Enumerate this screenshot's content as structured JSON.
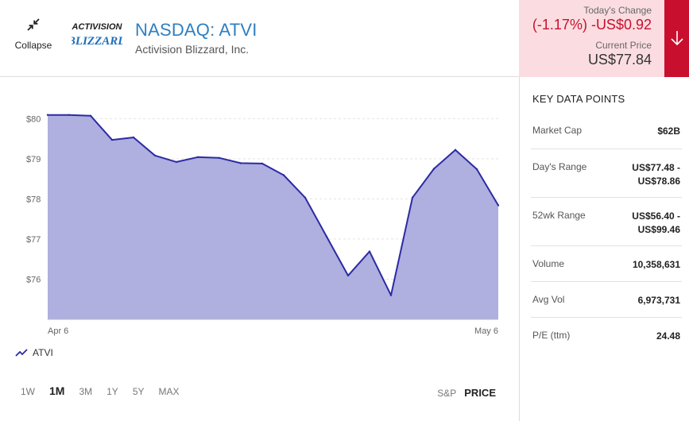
{
  "header": {
    "collapse_label": "Collapse",
    "ticker": "NASDAQ: ATVI",
    "company": "Activision Blizzard, Inc.",
    "logo_line1": "ACTIVISION",
    "logo_line2": "BLIZZARD"
  },
  "quote": {
    "change_label": "Today's Change",
    "change_value": "(-1.17%) -US$0.92",
    "price_label": "Current Price",
    "price_value": "US$77.84",
    "accent_color": "#c8102e",
    "panel_color": "#fbdde1"
  },
  "key_data": {
    "title": "KEY DATA POINTS",
    "rows": [
      {
        "label": "Market Cap",
        "value": "$62B"
      },
      {
        "label": "Day's Range",
        "value": "US$77.48 - US$78.86"
      },
      {
        "label": "52wk Range",
        "value": "US$56.40 - US$99.46"
      },
      {
        "label": "Volume",
        "value": "10,358,631"
      },
      {
        "label": "Avg Vol",
        "value": "6,973,731"
      },
      {
        "label": "P/E (ttm)",
        "value": "24.48"
      }
    ]
  },
  "controls": {
    "ranges": [
      "1W",
      "1M",
      "3M",
      "1Y",
      "5Y",
      "MAX"
    ],
    "active_range": "1M",
    "modes": [
      "S&P",
      "PRICE"
    ],
    "active_mode": "PRICE"
  },
  "chart_data": {
    "type": "area",
    "series": [
      {
        "name": "ATVI",
        "color": "#2b2ba3",
        "fill": "#afafe0",
        "values": [
          80.09,
          80.09,
          80.07,
          79.47,
          79.53,
          79.08,
          78.92,
          79.04,
          79.02,
          78.89,
          78.88,
          78.59,
          78.03,
          77.06,
          76.09,
          76.69,
          75.6,
          78.03,
          78.75,
          79.22,
          78.74,
          77.84
        ]
      }
    ],
    "x_start_label": "Apr 6",
    "x_end_label": "May 6",
    "ylim": [
      75,
      80.5
    ],
    "yticks": [
      76,
      77,
      78,
      79,
      80
    ],
    "ytick_labels": [
      "$76",
      "$77",
      "$78",
      "$79",
      "$80"
    ],
    "grid": true,
    "legend": "bottom-left"
  }
}
